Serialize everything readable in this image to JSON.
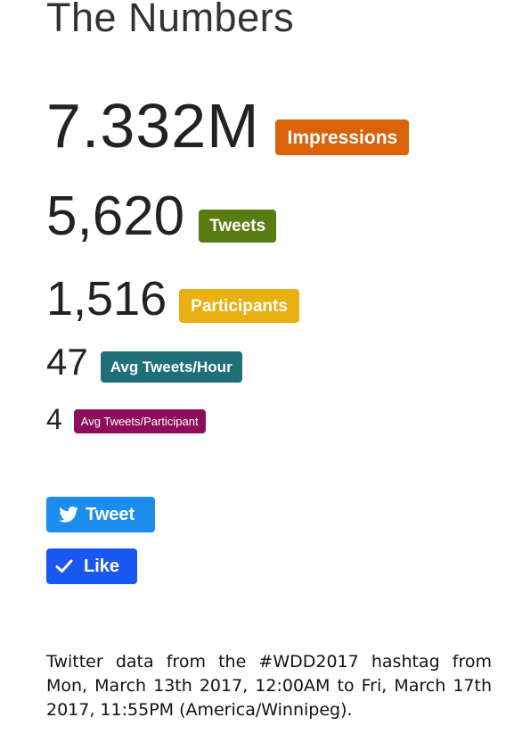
{
  "page_title": "The Numbers",
  "stats": {
    "impressions": {
      "value": "7.332M",
      "label": "Impressions",
      "color": "#d9620a"
    },
    "tweets": {
      "value": "5,620",
      "label": "Tweets",
      "color": "#5a7a12"
    },
    "participants": {
      "value": "1,516",
      "label": "Participants",
      "color": "#eaaf10"
    },
    "avg_tweets_hour": {
      "value": "47",
      "label": "Avg Tweets/Hour",
      "color": "#1f6f79"
    },
    "avg_tweets_participant": {
      "value": "4",
      "label": "Avg Tweets/Participant",
      "color": "#8f0e5b"
    }
  },
  "buttons": {
    "tweet": {
      "label": "Tweet",
      "icon": "twitter-bird-icon",
      "color": "#1c8ded"
    },
    "like": {
      "label": "Like",
      "icon": "checkmark-icon",
      "color": "#1a56f0"
    }
  },
  "footer": {
    "note": "Twitter data from the #WDD2017 hashtag from Mon, March 13th 2017, 12:00AM to Fri, March 17th 2017, 11:55PM (America/Winnipeg)."
  }
}
